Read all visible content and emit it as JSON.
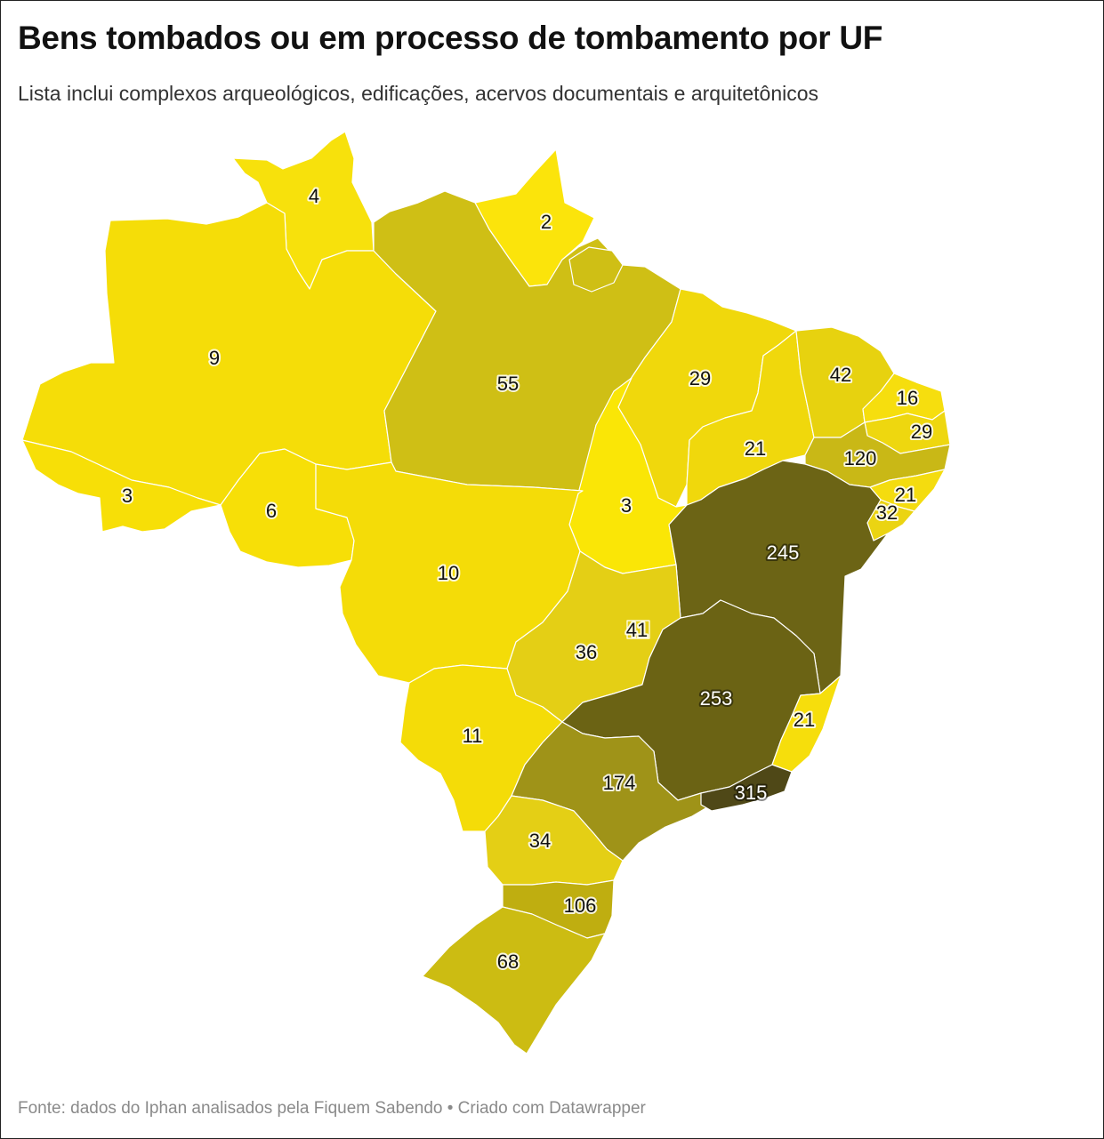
{
  "title": "Bens tombados ou em processo de tombamento por UF",
  "subtitle": "Lista inclui complexos arqueológicos, edificações, acervos documentais e arquitetônicos",
  "footer": "Fonte: dados do Iphan analisados pela Fiquem Sabendo • Criado com Datawrapper",
  "colors": {
    "scale_low": "#f8e108",
    "scale_mid": "#ccbd15",
    "scale_high": "#6b6314",
    "scale_max": "#4f4817",
    "border": "#ffffff"
  },
  "regions": [
    {
      "uf": "RR",
      "value": "4"
    },
    {
      "uf": "AP",
      "value": "2"
    },
    {
      "uf": "AM",
      "value": "9"
    },
    {
      "uf": "PA",
      "value": "55"
    },
    {
      "uf": "MA",
      "value": "29"
    },
    {
      "uf": "CE",
      "value": "42"
    },
    {
      "uf": "RN",
      "value": "16"
    },
    {
      "uf": "PB",
      "value": "29"
    },
    {
      "uf": "PE",
      "value": "120"
    },
    {
      "uf": "AL",
      "value": "21"
    },
    {
      "uf": "SE",
      "value": "32"
    },
    {
      "uf": "PI",
      "value": "21"
    },
    {
      "uf": "AC",
      "value": "3"
    },
    {
      "uf": "RO",
      "value": "6"
    },
    {
      "uf": "TO",
      "value": "3"
    },
    {
      "uf": "BA",
      "value": "245"
    },
    {
      "uf": "MT",
      "value": "10"
    },
    {
      "uf": "GO",
      "value": "36"
    },
    {
      "uf": "DF",
      "value": "41"
    },
    {
      "uf": "MG",
      "value": "253"
    },
    {
      "uf": "ES",
      "value": "21"
    },
    {
      "uf": "MS",
      "value": "11"
    },
    {
      "uf": "SP",
      "value": "174"
    },
    {
      "uf": "RJ",
      "value": "315"
    },
    {
      "uf": "PR",
      "value": "34"
    },
    {
      "uf": "SC",
      "value": "106"
    },
    {
      "uf": "RS",
      "value": "68"
    }
  ]
}
